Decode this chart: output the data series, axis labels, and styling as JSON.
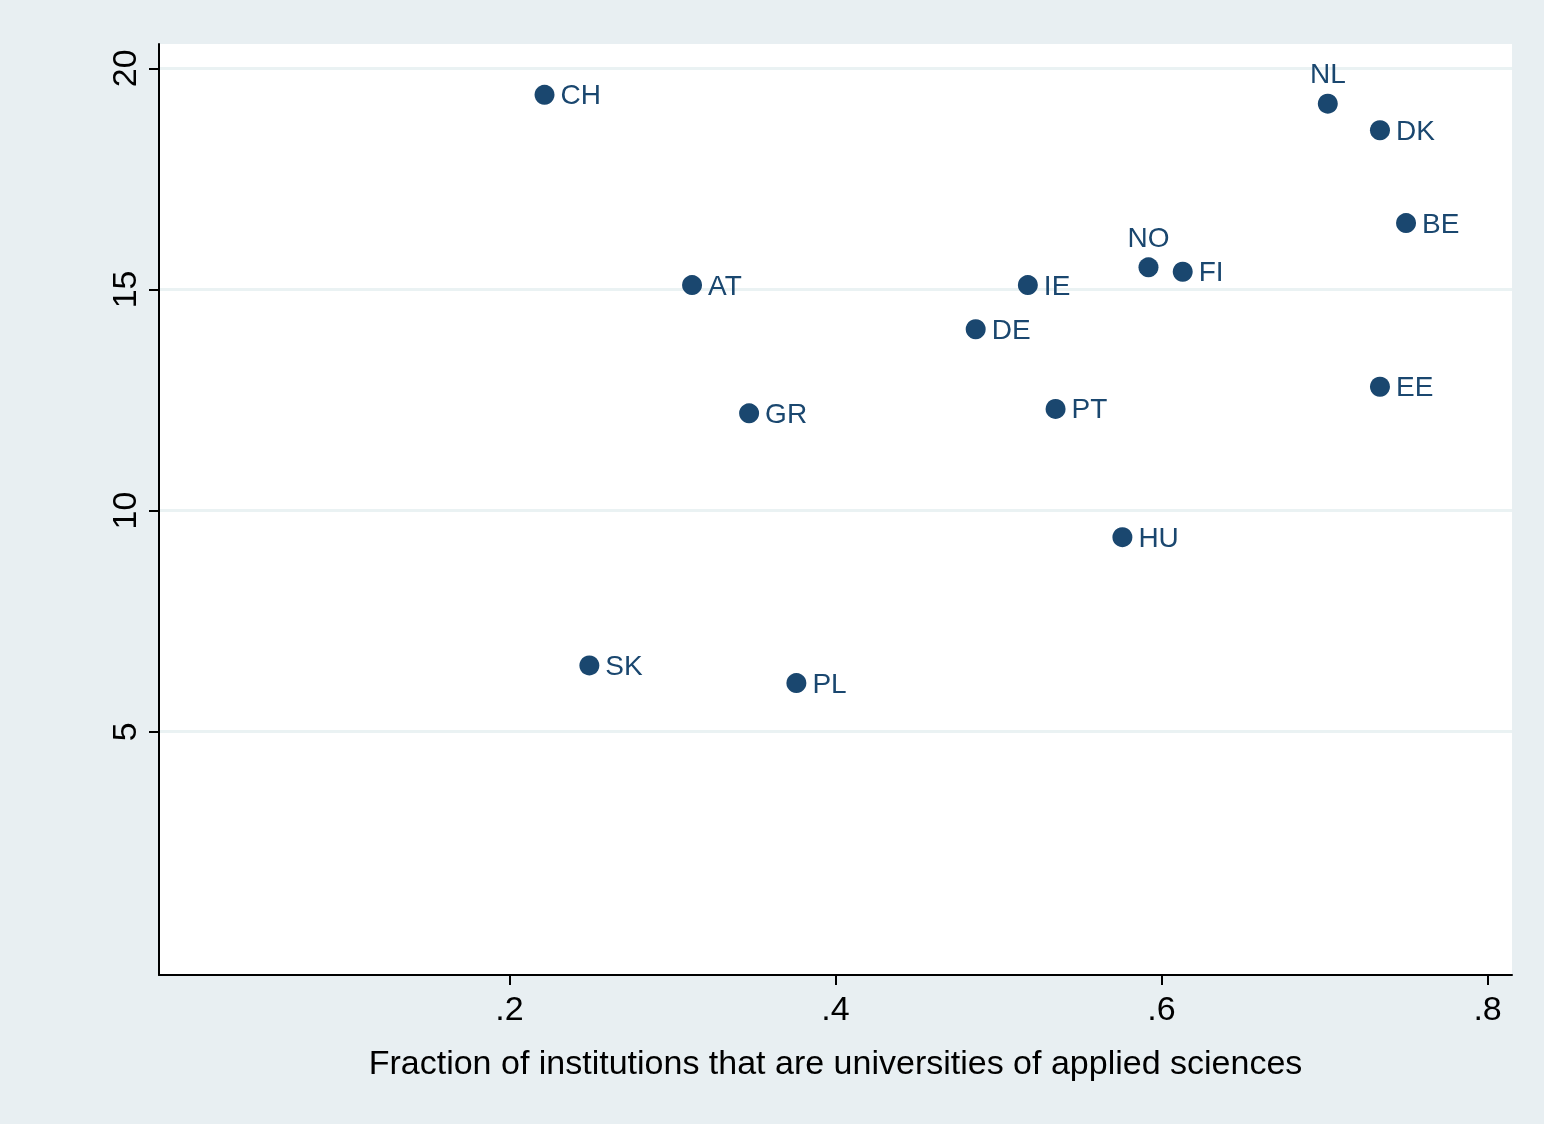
{
  "chart_data": {
    "type": "scatter",
    "xlabel": "Fraction of institutions that are universities of applied sciences",
    "x": [
      0.2215,
      0.249,
      0.312,
      0.347,
      0.376,
      0.486,
      0.518,
      0.535,
      0.576,
      0.592,
      0.613,
      0.702,
      0.734,
      0.734,
      0.75
    ],
    "values": [
      19.4,
      6.5,
      15.1,
      12.2,
      6.1,
      14.1,
      15.1,
      12.3,
      9.4,
      15.5,
      15.4,
      19.2,
      18.6,
      12.8,
      16.5
    ],
    "value_labels": [
      "CH",
      "SK",
      "AT",
      "GR",
      "PL",
      "DE",
      "IE",
      "PT",
      "HU",
      "NO",
      "FI",
      "NL",
      "DK",
      "EE",
      "BE"
    ],
    "color": "#1a476f",
    "marker": "circle",
    "xlim": [
      -0.015,
      0.815
    ],
    "xticks": [
      {
        "value": 0.2,
        "label": ".2"
      },
      {
        "value": 0.4,
        "label": ".4"
      },
      {
        "value": 0.6,
        "label": ".6"
      },
      {
        "value": 0.8,
        "label": ".8"
      }
    ],
    "ylim": [
      -0.5,
      20.55
    ],
    "yticks": [
      5,
      10,
      15,
      20
    ],
    "grid": "y"
  }
}
